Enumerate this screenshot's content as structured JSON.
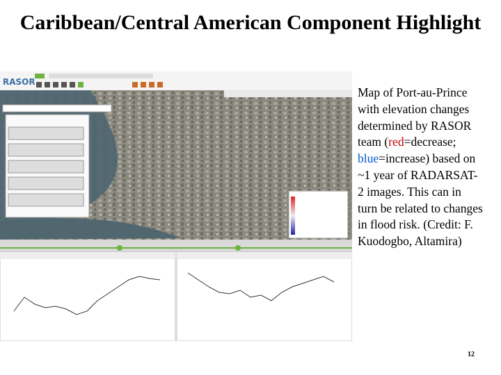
{
  "title": "Caribbean/Central American Component Highlight",
  "screenshot": {
    "logo": "RASOR"
  },
  "caption": {
    "parts": [
      "Map of Port-au-Prince with elevation changes determined by RASOR team (",
      "red",
      "=decrease; ",
      "blue",
      "=increase) based on ~1 year of RADARSAT-2 images. This can in turn be related to changes in flood risk. (Credit: F. Kuodogbo, Altamira)"
    ]
  },
  "slide_number": 12
}
